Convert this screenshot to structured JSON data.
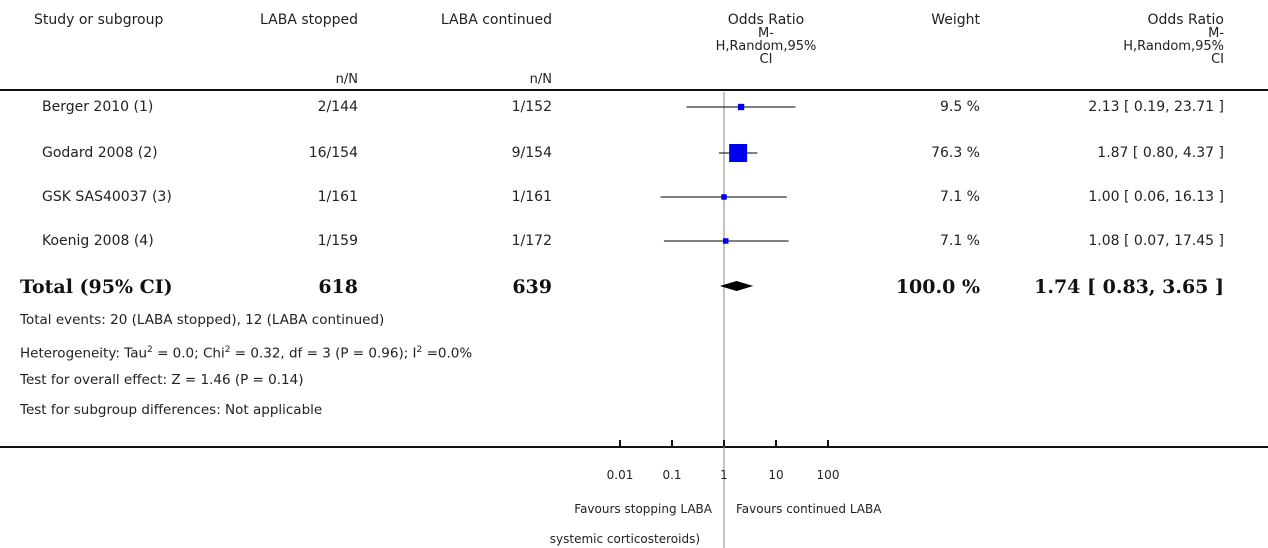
{
  "header": {
    "study": "Study or subgroup",
    "group1": "LABA stopped",
    "group1_sub": "n/N",
    "group2": "LABA continued",
    "group2_sub": "n/N",
    "or_plot_l1": "Odds Ratio",
    "or_plot_l2": "M-",
    "or_plot_l3": "H,Random,95%",
    "or_plot_l4": "CI",
    "weight": "Weight",
    "or_text_l1": "Odds Ratio",
    "or_text_l2": "M-",
    "or_text_l3": "H,Random,95%",
    "or_text_l4": "CI"
  },
  "rows": [
    {
      "study": "Berger 2010 (1)",
      "g1": "2/144",
      "g2": "1/152",
      "weight": "9.5 %",
      "or_text": "2.13 [ 0.19, 23.71 ]"
    },
    {
      "study": "Godard 2008 (2)",
      "g1": "16/154",
      "g2": "9/154",
      "weight": "76.3 %",
      "or_text": "1.87 [ 0.80, 4.37 ]"
    },
    {
      "study": "GSK SAS40037 (3)",
      "g1": "1/161",
      "g2": "1/161",
      "weight": "7.1 %",
      "or_text": "1.00 [ 0.06, 16.13 ]"
    },
    {
      "study": "Koenig 2008 (4)",
      "g1": "1/159",
      "g2": "1/172",
      "weight": "7.1 %",
      "or_text": "1.08 [ 0.07, 17.45 ]"
    }
  ],
  "total": {
    "label": "Total (95% CI)",
    "g1": "618",
    "g2": "639",
    "weight": "100.0 %",
    "or_text": "1.74 [ 0.83, 3.65 ]"
  },
  "footer": {
    "events": "Total events: 20 (LABA stopped), 12 (LABA continued)",
    "het_a": "Heterogeneity: Tau",
    "het_b": " = 0.0; Chi",
    "het_c": " = 0.32, df = 3 (P = 0.96); I",
    "het_d": " =0.0%",
    "sup": "2",
    "overall": "Test for overall effect: Z = 1.46 (P = 0.14)",
    "subgroup": "Test for subgroup differences: Not applicable"
  },
  "axis": {
    "ticks": [
      "0.01",
      "0.1",
      "1",
      "10",
      "100"
    ],
    "favours_left_l1": "Favours stopping LABA",
    "favours_left_l2": "systemic corticosteroids)",
    "favours_right": "Favours continued LABA"
  },
  "chart_data": {
    "type": "scatter",
    "xscale": "log",
    "xlim": [
      0.01,
      100
    ],
    "reference_line": 1,
    "studies": [
      {
        "name": "Berger 2010 (1)",
        "or": 2.13,
        "ci": [
          0.19,
          23.71
        ],
        "weight": 9.5
      },
      {
        "name": "Godard 2008 (2)",
        "or": 1.87,
        "ci": [
          0.8,
          4.37
        ],
        "weight": 76.3
      },
      {
        "name": "GSK SAS40037 (3)",
        "or": 1.0,
        "ci": [
          0.06,
          16.13
        ],
        "weight": 7.1
      },
      {
        "name": "Koenig 2008 (4)",
        "or": 1.08,
        "ci": [
          0.07,
          17.45
        ],
        "weight": 7.1
      }
    ],
    "pooled": {
      "name": "Total (95% CI)",
      "or": 1.74,
      "ci": [
        0.83,
        3.65
      ],
      "weight": 100.0
    },
    "colors": {
      "marker": "#0000ee",
      "diamond": "#000000",
      "line": "#000000"
    }
  }
}
